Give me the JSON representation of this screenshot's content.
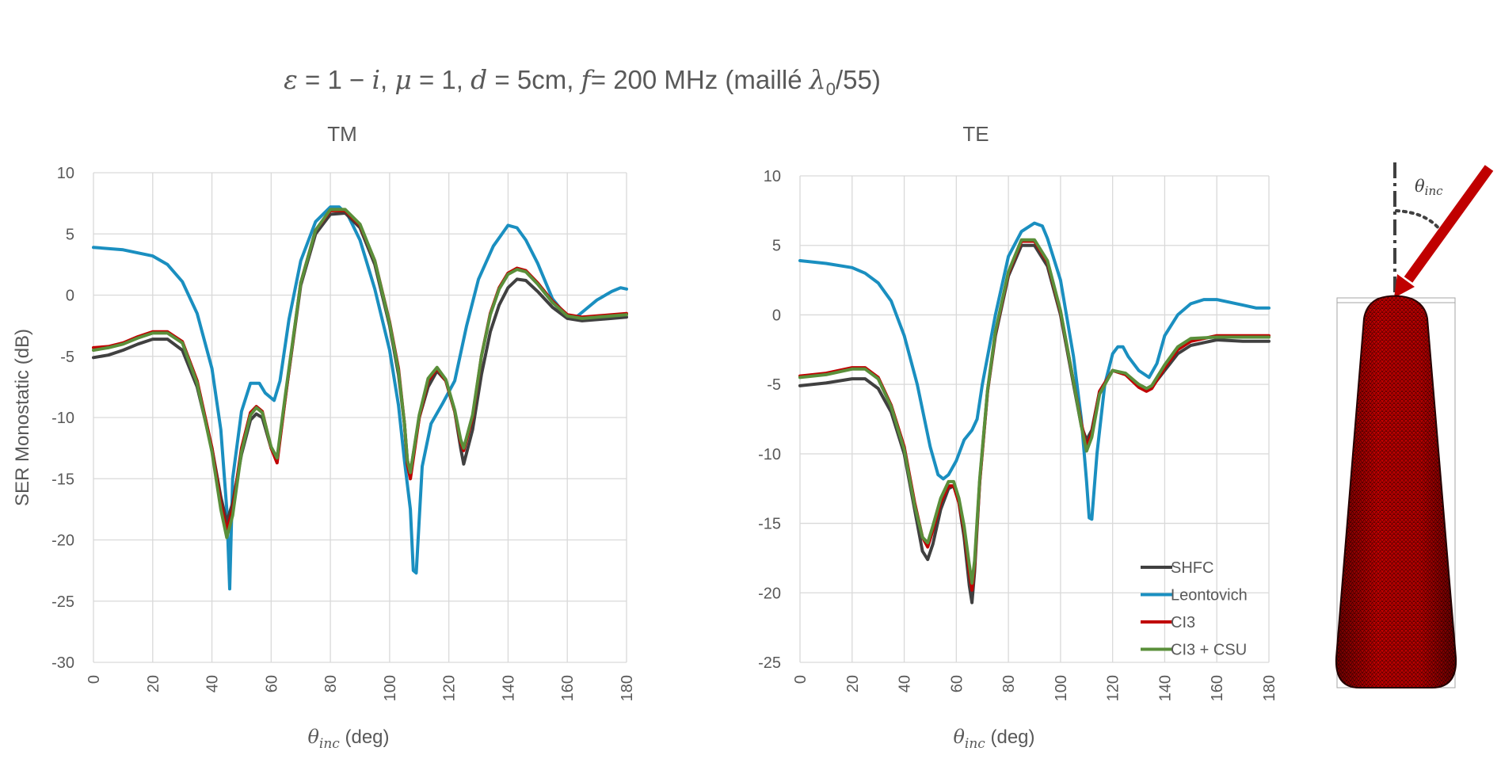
{
  "figure": {
    "title_parts": [
      {
        "t": "ε",
        "i": true
      },
      {
        "t": " = 1 − ",
        "i": false
      },
      {
        "t": "i",
        "i": true
      },
      {
        "t": ", ",
        "i": false
      },
      {
        "t": "μ",
        "i": true
      },
      {
        "t": " = 1, ",
        "i": false
      },
      {
        "t": "d",
        "i": true
      },
      {
        "t": " = 5cm, ",
        "i": false
      },
      {
        "t": "f",
        "i": true
      },
      {
        "t": "= 200 MHz (maillé ",
        "i": false
      },
      {
        "t": "λ",
        "i": true
      },
      {
        "t": "0",
        "i": false,
        "sub": true
      },
      {
        "t": "/55)",
        "i": false
      }
    ],
    "diagram_label": "θ",
    "diagram_label_sub": "inc",
    "colors": {
      "text": "#595959",
      "grid": "#d9d9d9",
      "body_fill": "#c00000",
      "arrow": "#c00000"
    }
  },
  "chart_data": [
    {
      "type": "line",
      "title": "TM",
      "xlabel": "θ",
      "xlabel_sub": "inc",
      "xlabel_suffix": " (deg)",
      "ylabel": "SER Monostatic (dB)",
      "xlim": [
        0,
        180
      ],
      "ylim": [
        -30,
        10
      ],
      "xticks": [
        0,
        20,
        40,
        60,
        80,
        100,
        120,
        140,
        160,
        180
      ],
      "yticks": [
        -30,
        -25,
        -20,
        -15,
        -10,
        -5,
        0,
        5,
        10
      ],
      "grid": true,
      "legend": "none",
      "series": [
        {
          "name": "Leontovich",
          "color": "#1a8fc0",
          "x": [
            0,
            10,
            20,
            25,
            30,
            35,
            40,
            43,
            45,
            46,
            47,
            50,
            53,
            56,
            58,
            61,
            63,
            66,
            70,
            75,
            80,
            83,
            86,
            90,
            95,
            100,
            103,
            105,
            107,
            108,
            109,
            111,
            114,
            118,
            122,
            126,
            130,
            135,
            140,
            143,
            146,
            150,
            155,
            160,
            163,
            166,
            170,
            175,
            178,
            180
          ],
          "y": [
            3.9,
            3.7,
            3.2,
            2.5,
            1.1,
            -1.5,
            -6.0,
            -11.0,
            -17.5,
            -24.0,
            -15.0,
            -9.5,
            -7.2,
            -7.2,
            -8.0,
            -8.6,
            -7.0,
            -2.0,
            2.8,
            6.0,
            7.2,
            7.2,
            6.5,
            4.5,
            0.5,
            -4.5,
            -9.0,
            -13.5,
            -17.5,
            -22.5,
            -22.7,
            -14.0,
            -10.5,
            -8.8,
            -7.0,
            -2.5,
            1.3,
            4.0,
            5.7,
            5.5,
            4.5,
            2.6,
            -0.3,
            -1.8,
            -1.8,
            -1.2,
            -0.4,
            0.3,
            0.6,
            0.5
          ]
        },
        {
          "name": "SHFC",
          "color": "#404040",
          "x": [
            0,
            5,
            10,
            15,
            20,
            25,
            30,
            35,
            40,
            43,
            45,
            47,
            50,
            53,
            55,
            57,
            60,
            62,
            65,
            70,
            75,
            80,
            85,
            90,
            95,
            100,
            103,
            105,
            106,
            107,
            110,
            113,
            116,
            119,
            122,
            124,
            125,
            128,
            131,
            134,
            137,
            140,
            143,
            146,
            150,
            155,
            160,
            165,
            170,
            175,
            180
          ],
          "y": [
            -5.1,
            -4.9,
            -4.5,
            -4.0,
            -3.6,
            -3.6,
            -4.5,
            -7.5,
            -12.5,
            -16.5,
            -18.5,
            -17.0,
            -13.0,
            -10.2,
            -9.7,
            -10.0,
            -12.5,
            -13.5,
            -8.0,
            0.8,
            5.0,
            6.6,
            6.7,
            5.5,
            2.5,
            -2.5,
            -6.5,
            -10.5,
            -13.5,
            -14.5,
            -10.0,
            -7.5,
            -6.2,
            -7.0,
            -9.5,
            -12.5,
            -13.8,
            -11.0,
            -6.5,
            -3.0,
            -0.8,
            0.6,
            1.3,
            1.2,
            0.3,
            -1.0,
            -1.9,
            -2.1,
            -2.0,
            -1.9,
            -1.8
          ]
        },
        {
          "name": "CI3",
          "color": "#c00000",
          "x": [
            0,
            5,
            10,
            15,
            20,
            25,
            30,
            35,
            40,
            43,
            45,
            47,
            50,
            53,
            55,
            57,
            60,
            62,
            65,
            70,
            75,
            80,
            85,
            90,
            95,
            100,
            103,
            105,
            106,
            107,
            110,
            113,
            116,
            119,
            122,
            124,
            125,
            128,
            131,
            134,
            137,
            140,
            143,
            146,
            150,
            155,
            160,
            165,
            170,
            175,
            180
          ],
          "y": [
            -4.3,
            -4.2,
            -3.9,
            -3.4,
            -3.0,
            -3.0,
            -3.8,
            -7.0,
            -12.5,
            -17.0,
            -19.2,
            -17.5,
            -12.5,
            -9.6,
            -9.1,
            -9.5,
            -12.5,
            -13.7,
            -8.0,
            1.0,
            5.3,
            6.9,
            6.9,
            5.7,
            2.8,
            -2.2,
            -6.0,
            -10.5,
            -13.8,
            -15.0,
            -10.0,
            -7.0,
            -6.0,
            -7.0,
            -9.5,
            -12.0,
            -12.7,
            -10.0,
            -5.0,
            -1.5,
            0.6,
            1.8,
            2.2,
            2.0,
            1.0,
            -0.5,
            -1.6,
            -1.8,
            -1.7,
            -1.6,
            -1.5
          ]
        },
        {
          "name": "CI3 + CSU",
          "color": "#5a8f3a",
          "x": [
            0,
            5,
            10,
            15,
            20,
            25,
            30,
            35,
            40,
            43,
            45,
            47,
            50,
            53,
            55,
            57,
            60,
            62,
            65,
            70,
            75,
            80,
            85,
            90,
            95,
            100,
            103,
            105,
            106,
            107,
            110,
            113,
            116,
            119,
            122,
            124,
            125,
            128,
            131,
            134,
            137,
            140,
            143,
            146,
            150,
            155,
            160,
            165,
            170,
            175,
            180
          ],
          "y": [
            -4.5,
            -4.3,
            -4.0,
            -3.5,
            -3.1,
            -3.1,
            -3.9,
            -7.2,
            -12.8,
            -17.5,
            -19.8,
            -18.0,
            -12.8,
            -9.8,
            -9.2,
            -9.6,
            -12.4,
            -13.3,
            -7.8,
            1.0,
            5.3,
            7.0,
            7.0,
            5.8,
            2.8,
            -2.3,
            -6.2,
            -10.5,
            -13.5,
            -14.5,
            -9.8,
            -6.8,
            -5.9,
            -6.9,
            -9.4,
            -11.8,
            -12.5,
            -9.8,
            -5.0,
            -1.6,
            0.5,
            1.7,
            2.1,
            1.9,
            0.9,
            -0.6,
            -1.7,
            -1.9,
            -1.8,
            -1.7,
            -1.6
          ]
        }
      ]
    },
    {
      "type": "line",
      "title": "TE",
      "xlabel": "θ",
      "xlabel_sub": "inc",
      "xlabel_suffix": " (deg)",
      "ylabel": "",
      "xlim": [
        0,
        180
      ],
      "ylim": [
        -25,
        10
      ],
      "xticks": [
        0,
        20,
        40,
        60,
        80,
        100,
        120,
        140,
        160,
        180
      ],
      "yticks": [
        -25,
        -20,
        -15,
        -10,
        -5,
        0,
        5,
        10
      ],
      "grid": true,
      "legend": "bottom-right",
      "series": [
        {
          "name": "SHFC",
          "color": "#404040",
          "x": [
            0,
            10,
            20,
            25,
            30,
            35,
            40,
            44,
            47,
            49,
            51,
            54,
            57,
            59,
            61,
            63,
            65,
            66,
            67,
            69,
            72,
            75,
            80,
            85,
            90,
            95,
            100,
            105,
            108,
            110,
            112,
            115,
            120,
            125,
            130,
            133,
            135,
            140,
            145,
            150,
            160,
            170,
            180
          ],
          "y": [
            -5.1,
            -4.9,
            -4.6,
            -4.6,
            -5.3,
            -7.0,
            -10.0,
            -14.0,
            -17.0,
            -17.6,
            -16.5,
            -14.0,
            -12.5,
            -12.3,
            -13.5,
            -16.0,
            -19.5,
            -20.7,
            -18.5,
            -12.0,
            -5.5,
            -1.5,
            2.8,
            5.0,
            5.0,
            3.5,
            0.0,
            -5.0,
            -8.0,
            -9.0,
            -8.3,
            -5.5,
            -4.0,
            -4.3,
            -5.0,
            -5.3,
            -5.2,
            -4.0,
            -2.8,
            -2.2,
            -1.8,
            -1.9,
            -1.9
          ]
        },
        {
          "name": "Leontovich",
          "color": "#1a8fc0",
          "x": [
            0,
            10,
            20,
            25,
            30,
            35,
            40,
            45,
            50,
            53,
            55,
            57,
            60,
            63,
            66,
            68,
            70,
            75,
            80,
            85,
            90,
            93,
            95,
            100,
            105,
            108,
            110,
            111,
            112,
            114,
            117,
            120,
            122,
            124,
            126,
            130,
            134,
            137,
            140,
            145,
            150,
            155,
            160,
            165,
            170,
            175,
            180
          ],
          "y": [
            3.9,
            3.7,
            3.4,
            3.0,
            2.3,
            1.0,
            -1.5,
            -5.0,
            -9.5,
            -11.5,
            -11.8,
            -11.5,
            -10.5,
            -9.0,
            -8.3,
            -7.5,
            -5.0,
            0.0,
            4.2,
            6.0,
            6.6,
            6.4,
            5.5,
            2.5,
            -3.0,
            -7.5,
            -12.0,
            -14.6,
            -14.7,
            -10.0,
            -5.0,
            -2.8,
            -2.3,
            -2.3,
            -3.0,
            -4.0,
            -4.5,
            -3.5,
            -1.5,
            0.0,
            0.8,
            1.1,
            1.1,
            0.9,
            0.7,
            0.5,
            0.5
          ]
        },
        {
          "name": "CI3",
          "color": "#c00000",
          "x": [
            0,
            10,
            20,
            25,
            30,
            35,
            40,
            44,
            47,
            49,
            51,
            54,
            57,
            59,
            61,
            63,
            65,
            66,
            67,
            69,
            72,
            75,
            80,
            85,
            90,
            95,
            100,
            105,
            108,
            110,
            112,
            115,
            120,
            125,
            130,
            133,
            135,
            140,
            145,
            150,
            160,
            170,
            180
          ],
          "y": [
            -4.4,
            -4.2,
            -3.8,
            -3.8,
            -4.5,
            -6.5,
            -9.5,
            -13.5,
            -16.0,
            -16.7,
            -15.5,
            -13.5,
            -12.3,
            -12.3,
            -13.5,
            -15.5,
            -18.5,
            -19.8,
            -18.0,
            -12.0,
            -5.5,
            -1.3,
            3.0,
            5.3,
            5.3,
            3.8,
            0.2,
            -4.8,
            -7.8,
            -9.5,
            -8.5,
            -5.5,
            -4.0,
            -4.3,
            -5.2,
            -5.5,
            -5.3,
            -3.8,
            -2.5,
            -1.9,
            -1.5,
            -1.5,
            -1.5
          ]
        },
        {
          "name": "CI3 + CSU",
          "color": "#5a8f3a",
          "x": [
            0,
            10,
            20,
            25,
            30,
            35,
            40,
            44,
            47,
            49,
            51,
            54,
            57,
            59,
            61,
            63,
            65,
            66,
            67,
            69,
            72,
            75,
            80,
            85,
            90,
            95,
            100,
            105,
            108,
            110,
            112,
            115,
            120,
            125,
            130,
            133,
            135,
            140,
            145,
            150,
            160,
            170,
            180
          ],
          "y": [
            -4.5,
            -4.3,
            -3.9,
            -3.9,
            -4.6,
            -6.6,
            -9.7,
            -13.7,
            -16.0,
            -16.4,
            -15.2,
            -13.2,
            -12.0,
            -12.0,
            -13.2,
            -15.2,
            -18.0,
            -19.3,
            -17.7,
            -11.8,
            -5.4,
            -1.2,
            3.1,
            5.4,
            5.4,
            3.9,
            0.3,
            -4.8,
            -8.0,
            -9.8,
            -8.8,
            -5.7,
            -4.0,
            -4.2,
            -5.0,
            -5.3,
            -5.1,
            -3.6,
            -2.3,
            -1.7,
            -1.6,
            -1.6,
            -1.6
          ]
        }
      ]
    }
  ]
}
